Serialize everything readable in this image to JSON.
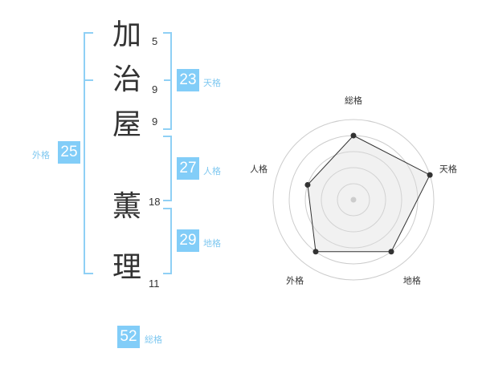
{
  "name": {
    "chars": [
      {
        "char": "加",
        "strokes": "5"
      },
      {
        "char": "治",
        "strokes": "9"
      },
      {
        "char": "屋",
        "strokes": "9"
      },
      {
        "char": "薫",
        "strokes": "18"
      },
      {
        "char": "理",
        "strokes": "11"
      }
    ]
  },
  "kaku": {
    "tenkaku": {
      "label": "天格",
      "value": "23"
    },
    "jinkaku": {
      "label": "人格",
      "value": "27"
    },
    "chikaku": {
      "label": "地格",
      "value": "29"
    },
    "gaikaku": {
      "label": "外格",
      "value": "25"
    },
    "soukaku": {
      "label": "総格",
      "value": "52"
    }
  },
  "colors": {
    "accent": "#82cdf8",
    "bracket": "#8fd0f5"
  },
  "chart_data": {
    "type": "radar",
    "axes": [
      "総格",
      "天格",
      "地格",
      "外格",
      "人格"
    ],
    "values": [
      4,
      5,
      4,
      4,
      3
    ],
    "range": [
      0,
      5
    ],
    "rings": 5
  }
}
